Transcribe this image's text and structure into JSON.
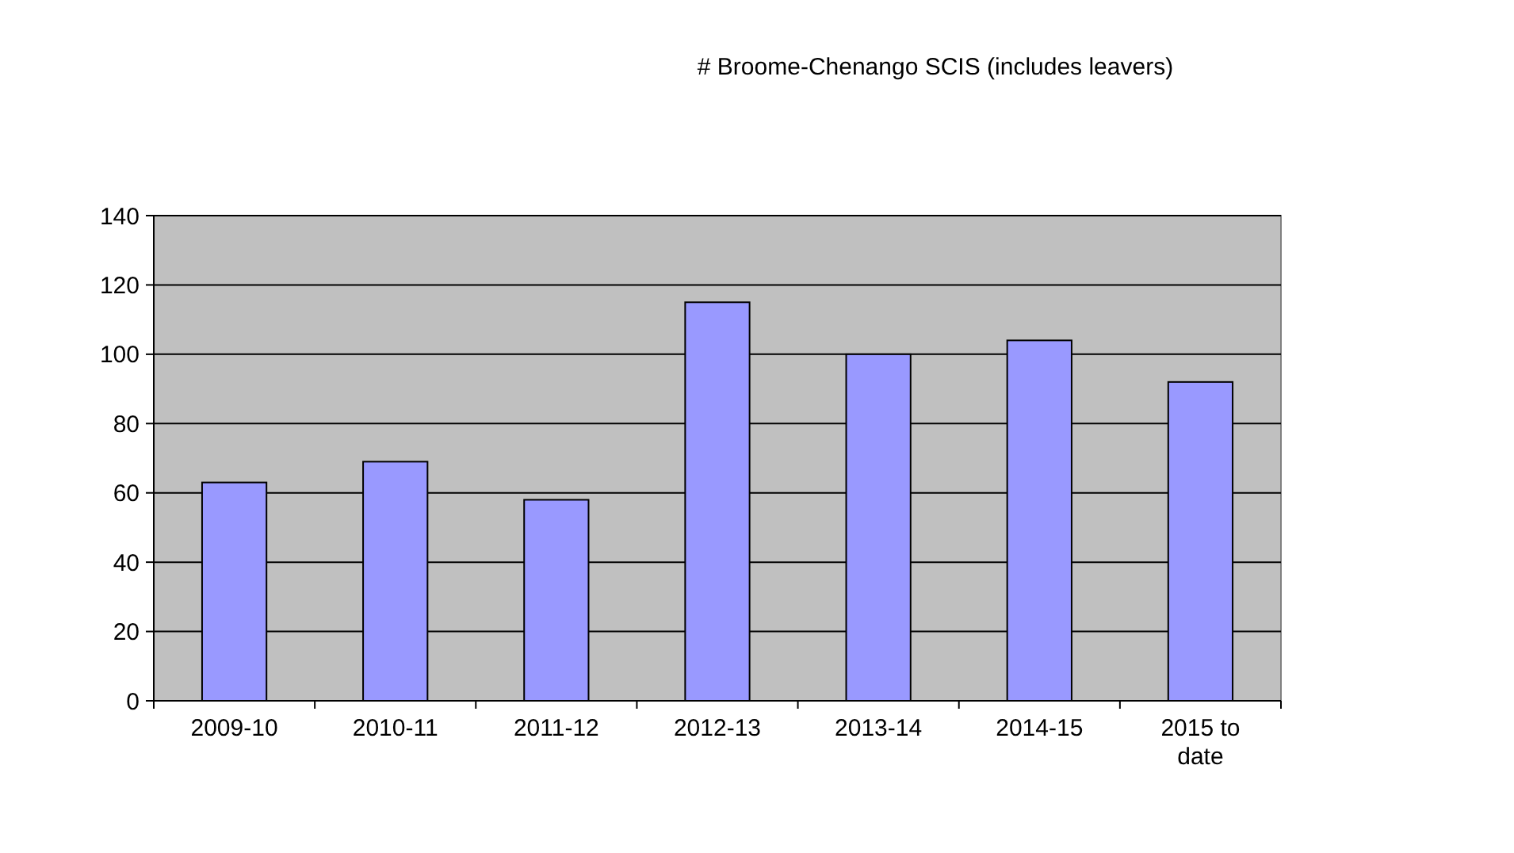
{
  "chart_data": {
    "type": "bar",
    "title": "# Broome-Chenango SCIS (includes leavers)",
    "categories": [
      "2009-10",
      "2010-11",
      "2011-12",
      "2012-13",
      "2013-14",
      "2014-15",
      "2015 to date"
    ],
    "values": [
      63,
      69,
      58,
      115,
      100,
      104,
      92
    ],
    "color": "#9999ff",
    "ylim": [
      0,
      140
    ],
    "yticks": [
      0,
      20,
      40,
      60,
      80,
      100,
      120,
      140
    ],
    "grid": "y"
  }
}
